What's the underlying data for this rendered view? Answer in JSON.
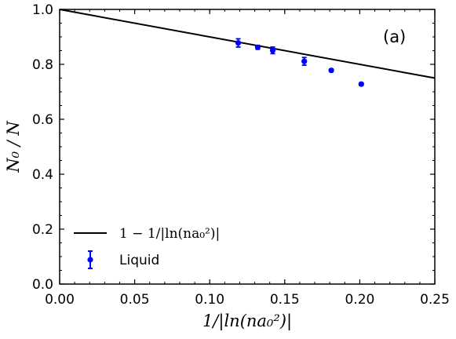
{
  "chart_data": {
    "type": "scatter",
    "panel_label": "(a)",
    "xlabel": "1/|ln(na₀²)|",
    "ylabel": "N₀ / N",
    "xlim": [
      0.0,
      0.25
    ],
    "ylim": [
      0.0,
      1.0
    ],
    "x_ticks": [
      "0.00",
      "0.05",
      "0.10",
      "0.15",
      "0.20",
      "0.25"
    ],
    "y_ticks": [
      "0.0",
      "0.2",
      "0.4",
      "0.6",
      "0.8",
      "1.0"
    ],
    "grid": false,
    "legend_position": "lower-left",
    "series": [
      {
        "name": "1 − 1/|ln(na₀²)|",
        "kind": "line",
        "color": "#000000",
        "x": [
          0.0,
          0.25
        ],
        "y": [
          1.0,
          0.75
        ]
      },
      {
        "name": "Liquid",
        "kind": "scatter",
        "color": "#0000ff",
        "x": [
          0.119,
          0.132,
          0.142,
          0.163,
          0.181,
          0.201
        ],
        "y": [
          0.878,
          0.862,
          0.851,
          0.811,
          0.778,
          0.728
        ],
        "yerr": [
          0.015,
          0.007,
          0.012,
          0.014,
          0.005,
          0.005
        ]
      }
    ]
  }
}
